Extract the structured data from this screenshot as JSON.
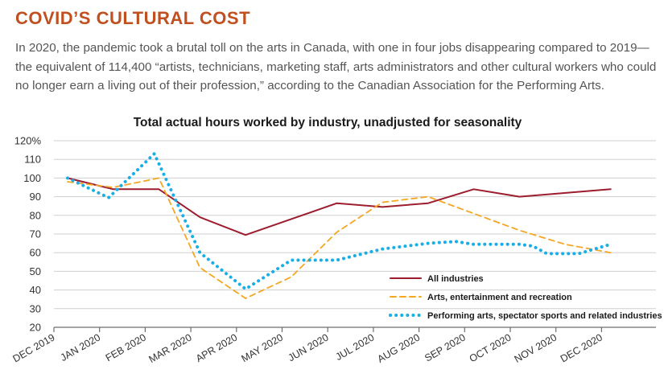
{
  "header": {
    "title": "COVID’S CULTURAL COST",
    "intro": "In 2020, the pandemic took a brutal toll on the arts in Canada, with one in four jobs disappearing compared to 2019—the equivalent of 114,400 “artists, technicians, marketing staff, arts administrators and other cultural workers who could no longer earn a living out of their profession,” according to the Canadian Association for the Performing Arts."
  },
  "colors": {
    "title": "#c0501f",
    "grid": "#cfcfcf",
    "axis": "#6e6e6e"
  },
  "chart_data": {
    "type": "line",
    "title": "Total actual hours worked by industry, unadjusted for seasonality",
    "xlabel": "",
    "ylabel": "",
    "x": [
      "DEC 2019",
      "JAN 2020",
      "FEB 2020",
      "MAR 2020",
      "APR 2020",
      "MAY 2020",
      "JUN 2020",
      "JUL 2020",
      "AUG 2020",
      "SEP 2020",
      "OCT 2020",
      "NOV 2020",
      "DEC 2020"
    ],
    "yticks": [
      "120%",
      "110",
      "100",
      "90",
      "80",
      "70",
      "60",
      "50",
      "40",
      "30",
      "20"
    ],
    "ylim": [
      20,
      120
    ],
    "grid": true,
    "legend_position": "bottom-right",
    "series": [
      {
        "name": "All industries",
        "color": "#9c1d2e",
        "style": "solid",
        "points": [
          [
            0.3,
            100
          ],
          [
            1.3,
            94
          ],
          [
            2.3,
            94
          ],
          [
            3.2,
            79
          ],
          [
            4.2,
            69.5
          ],
          [
            6.2,
            86.5
          ],
          [
            7.2,
            84.5
          ],
          [
            8.2,
            86.5
          ],
          [
            9.2,
            94
          ],
          [
            10.2,
            90
          ],
          [
            12.2,
            94
          ]
        ]
      },
      {
        "name": "Arts, entertainment and recreation",
        "color": "#f5a623",
        "style": "dashed",
        "points": [
          [
            0.3,
            98
          ],
          [
            1.3,
            95
          ],
          [
            2.3,
            100
          ],
          [
            3.2,
            52
          ],
          [
            4.2,
            35.5
          ],
          [
            5.2,
            47
          ],
          [
            6.2,
            71
          ],
          [
            7.2,
            87
          ],
          [
            8.2,
            90
          ],
          [
            9.2,
            81
          ],
          [
            10.2,
            72
          ],
          [
            11.2,
            64.5
          ],
          [
            12.2,
            60
          ]
        ]
      },
      {
        "name": "Performing arts, spectator sports and related industries",
        "color": "#18aee8",
        "style": "dotted",
        "points": [
          [
            0.3,
            100
          ],
          [
            1.2,
            89.5
          ],
          [
            2.2,
            113
          ],
          [
            3.2,
            60
          ],
          [
            4.2,
            40.5
          ],
          [
            5.2,
            56
          ],
          [
            6.2,
            56
          ],
          [
            7.2,
            62
          ],
          [
            8.2,
            65
          ],
          [
            8.8,
            66
          ],
          [
            9.2,
            64.5
          ],
          [
            10.2,
            64.5
          ],
          [
            10.5,
            63.5
          ],
          [
            10.8,
            59.5
          ],
          [
            11.5,
            59.5
          ],
          [
            12.2,
            64.5
          ]
        ]
      }
    ]
  }
}
